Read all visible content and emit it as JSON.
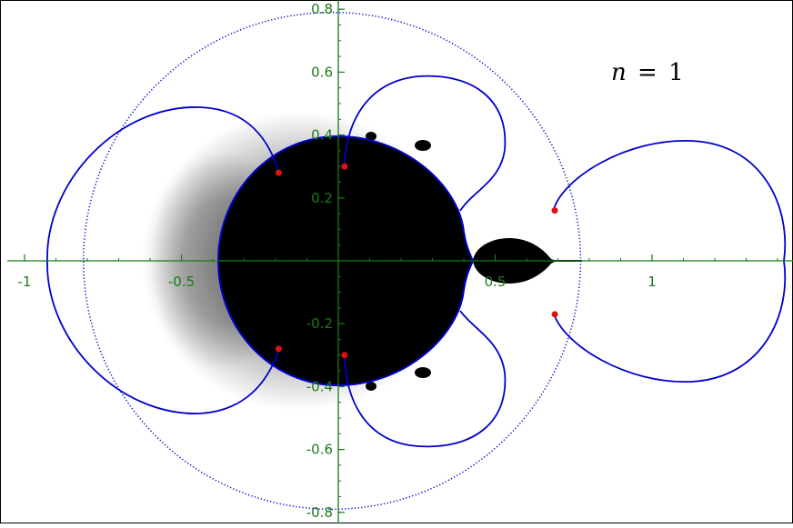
{
  "chart_data": {
    "type": "scatter",
    "title": "",
    "xlabel": "",
    "ylabel": "",
    "xlim": [
      -1.04,
      1.45
    ],
    "ylim": [
      -0.82,
      0.82
    ],
    "grid": false,
    "annotation": {
      "n_label": "n",
      "eq": "=",
      "value": "1"
    },
    "x_ticks": [
      {
        "value": -1,
        "label": "-1"
      },
      {
        "value": -0.5,
        "label": "-0.5"
      },
      {
        "value": 0.5,
        "label": "0.5"
      },
      {
        "value": 1,
        "label": "1"
      }
    ],
    "y_ticks": [
      {
        "value": 0.8,
        "label": "0.8"
      },
      {
        "value": 0.6,
        "label": "0.6"
      },
      {
        "value": 0.4,
        "label": "0.4"
      },
      {
        "value": 0.2,
        "label": "0.2"
      },
      {
        "value": -0.2,
        "label": "-0.2"
      },
      {
        "value": -0.4,
        "label": "-0.4"
      },
      {
        "value": -0.6,
        "label": "-0.6"
      },
      {
        "value": -0.8,
        "label": "-0.8"
      }
    ],
    "points": [
      {
        "x": -0.19,
        "y": 0.28
      },
      {
        "x": 0.02,
        "y": 0.3
      },
      {
        "x": 0.69,
        "y": 0.16
      },
      {
        "x": -0.19,
        "y": -0.28
      },
      {
        "x": 0.02,
        "y": -0.3
      },
      {
        "x": 0.69,
        "y": -0.17
      }
    ],
    "circle": {
      "cx": -0.02,
      "cy": 0.0,
      "r": 0.79
    },
    "colors": {
      "axes": "#1a7a1a",
      "curve": "#0000cc",
      "points": "#e01010",
      "set": "#000000"
    }
  }
}
